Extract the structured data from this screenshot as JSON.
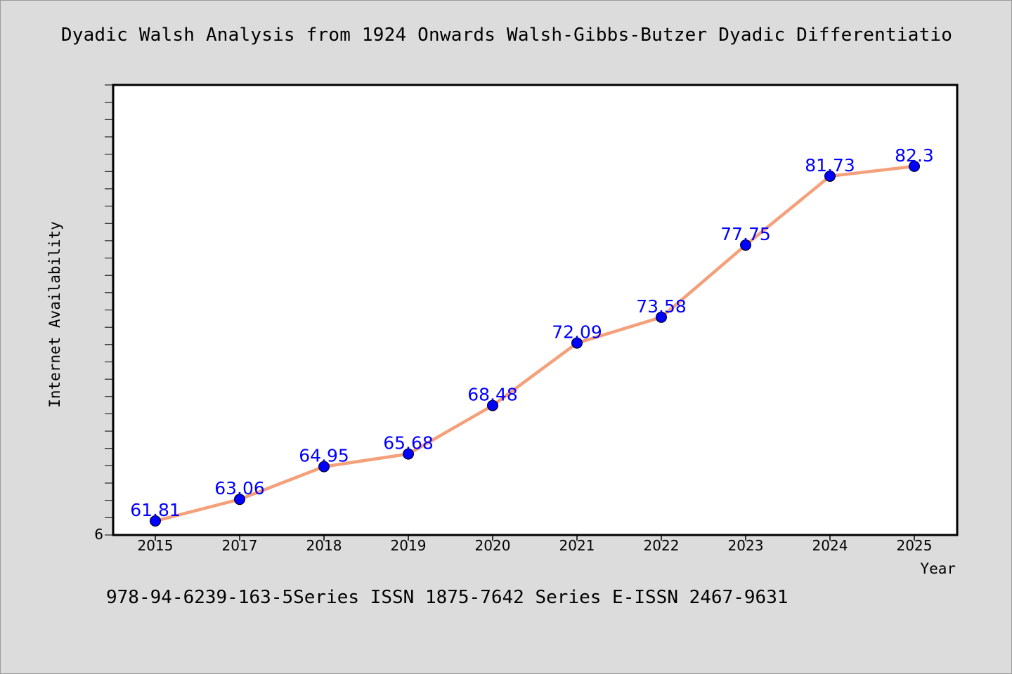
{
  "title": "Dyadic Walsh Analysis from 1924 Onwards Walsh-Gibbs-Butzer Dyadic Differentiatio",
  "footer": "978-94-6239-163-5Series ISSN 1875-7642 Series E-ISSN 2467-9631",
  "colors": {
    "background": "#dcdcdc",
    "plot_background": "#ffffff",
    "line": "#f4a07a",
    "marker": "#0000ff",
    "label": "#0000ff"
  },
  "chart_data": {
    "type": "line",
    "title": "Dyadic Walsh Analysis from 1924 Onwards Walsh-Gibbs-Butzer Dyadic Differentiatio",
    "xlabel": "Year",
    "ylabel": "Internet Availability",
    "categories": [
      "2015",
      "2017",
      "2018",
      "2019",
      "2020",
      "2021",
      "2022",
      "2023",
      "2024",
      "2025"
    ],
    "series": [
      {
        "values": [
          61.81,
          63.06,
          64.95,
          65.68,
          68.48,
          72.09,
          73.58,
          77.75,
          81.73,
          82.3
        ],
        "labels": [
          "61.81",
          "63.06",
          "64.95",
          "65.68",
          "68.48",
          "72.09",
          "73.58",
          "77.75",
          "81.73",
          "82.3"
        ]
      }
    ],
    "y_tick_labels": [
      "6"
    ],
    "ylim": [
      61.0,
      87.0
    ],
    "grid": false,
    "legend": "none"
  }
}
